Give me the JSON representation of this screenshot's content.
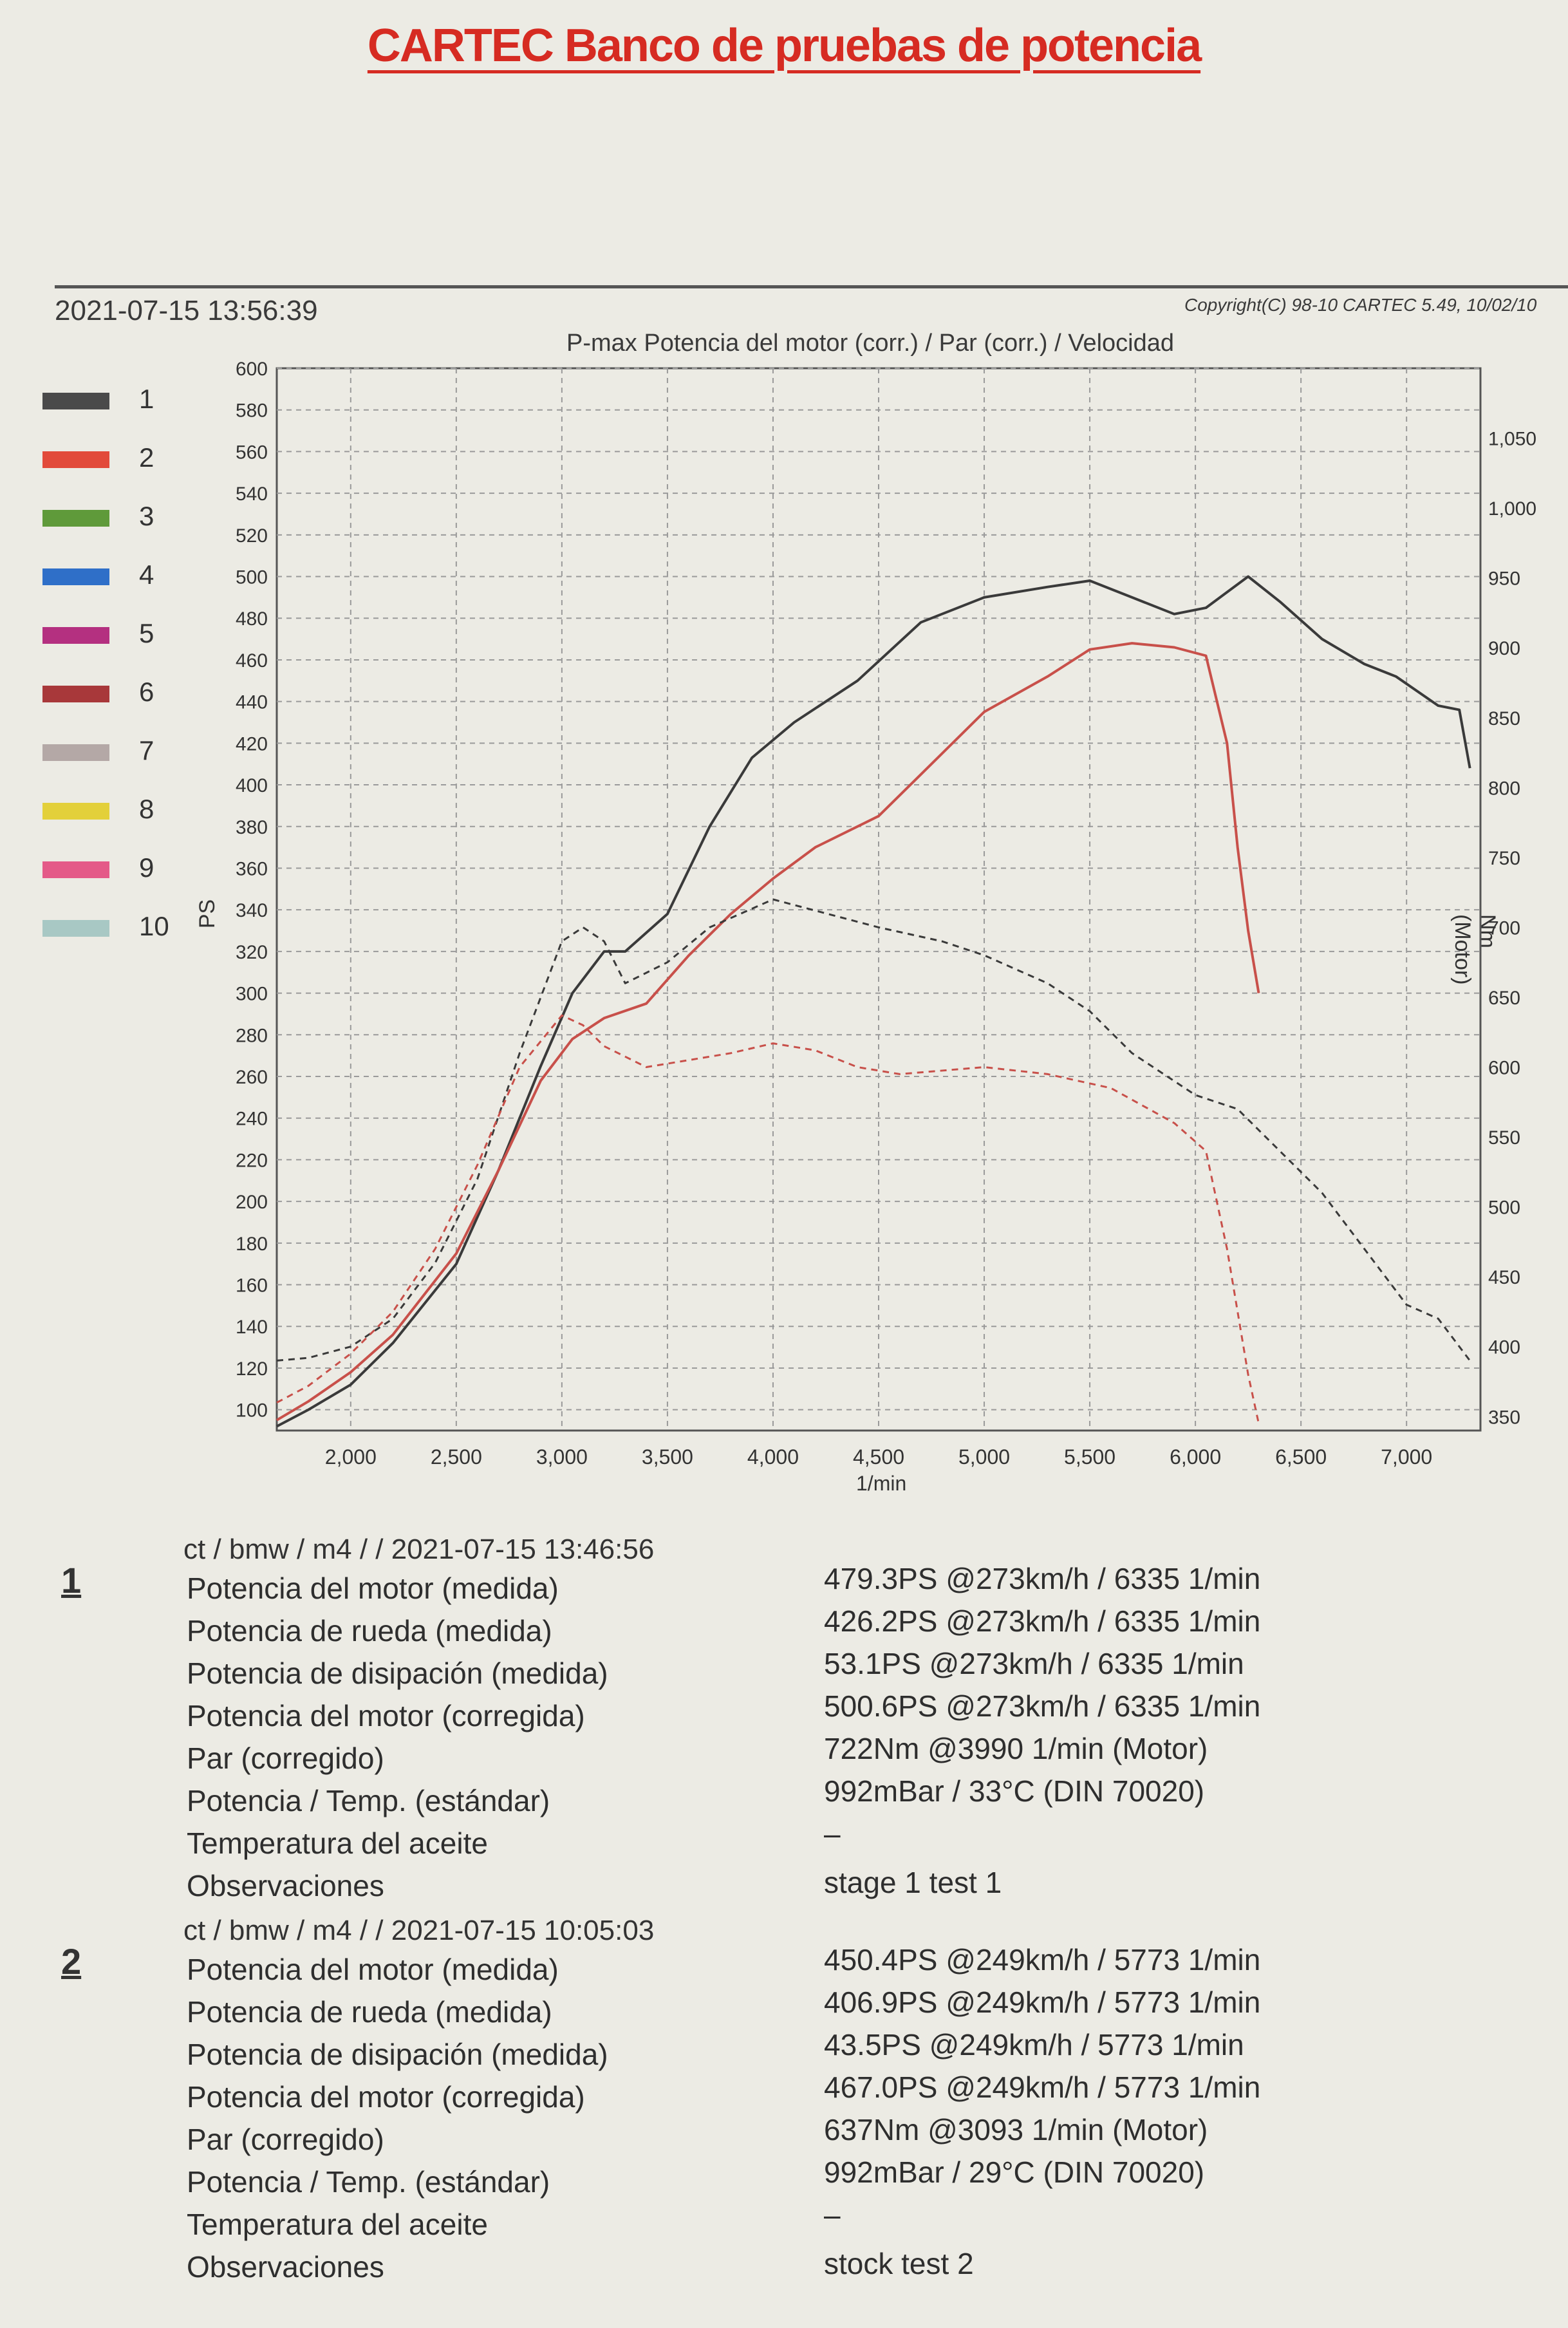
{
  "header": {
    "title": "CARTEC Banco de pruebas de potencia",
    "datetime": "2021-07-15 13:56:39",
    "copyright": "Copyright(C) 98-10 CARTEC 5.49, 10/02/10"
  },
  "legend": [
    {
      "num": "1",
      "color": "#4a4a4a"
    },
    {
      "num": "2",
      "color": "#e24a3a"
    },
    {
      "num": "3",
      "color": "#5f9a3a"
    },
    {
      "num": "4",
      "color": "#2f6fc8"
    },
    {
      "num": "5",
      "color": "#b43080"
    },
    {
      "num": "6",
      "color": "#a8383a"
    },
    {
      "num": "7",
      "color": "#b4a8a6"
    },
    {
      "num": "8",
      "color": "#e3d03a"
    },
    {
      "num": "9",
      "color": "#e45a88"
    },
    {
      "num": "10",
      "color": "#a8c8c4"
    }
  ],
  "chart_data": {
    "type": "line",
    "title": "P-max Potencia del motor (corr.) / Par (corr.) / Velocidad",
    "xlabel": "1/min",
    "ylabel_left": "PS",
    "ylabel_right": "Nm (Motor)",
    "xlim": [
      1650,
      7350
    ],
    "ylim_left": [
      90,
      600
    ],
    "ylim_right": [
      340,
      1100
    ],
    "x_ticks": [
      2000,
      2500,
      3000,
      3500,
      4000,
      4500,
      5000,
      5500,
      6000,
      6500,
      7000
    ],
    "x_tick_labels": [
      "2,000",
      "2,500",
      "3,000",
      "3,500",
      "4,000",
      "4,500",
      "5,000",
      "5,500",
      "6,000",
      "6,500",
      "7,000"
    ],
    "y_left_ticks": [
      100,
      120,
      140,
      160,
      180,
      200,
      220,
      240,
      260,
      280,
      300,
      320,
      340,
      360,
      380,
      400,
      420,
      440,
      460,
      480,
      500,
      520,
      540,
      560,
      580,
      600
    ],
    "y_right_ticks": [
      350,
      400,
      450,
      500,
      550,
      600,
      650,
      700,
      750,
      800,
      850,
      900,
      950,
      1000,
      1050
    ],
    "y_right_tick_labels": [
      "350",
      "400",
      "450",
      "500",
      "550",
      "600",
      "650",
      "700",
      "750",
      "800",
      "850",
      "900",
      "950",
      "1,000",
      "1,050"
    ],
    "grid": true,
    "series": [
      {
        "name": "1",
        "axis": "left",
        "style": "solid",
        "color": "#3a3a3a",
        "x": [
          1650,
          1800,
          2000,
          2200,
          2500,
          2700,
          2900,
          3050,
          3200,
          3300,
          3500,
          3700,
          3900,
          4100,
          4400,
          4700,
          5000,
          5300,
          5500,
          5700,
          5900,
          6050,
          6250,
          6400,
          6600,
          6800,
          6950,
          7150,
          7250,
          7300
        ],
        "y": [
          92,
          100,
          112,
          132,
          170,
          215,
          265,
          300,
          320,
          320,
          338,
          380,
          413,
          430,
          450,
          478,
          490,
          495,
          498,
          490,
          482,
          485,
          500,
          488,
          470,
          458,
          452,
          438,
          436,
          408
        ]
      },
      {
        "name": "2",
        "axis": "left",
        "style": "solid",
        "color": "#c8504a",
        "x": [
          1650,
          1800,
          2000,
          2200,
          2500,
          2700,
          2900,
          3050,
          3200,
          3400,
          3600,
          3800,
          4000,
          4200,
          4500,
          4700,
          5000,
          5300,
          5500,
          5700,
          5900,
          6050,
          6150,
          6200,
          6250,
          6300
        ],
        "y": [
          95,
          104,
          118,
          136,
          175,
          215,
          258,
          278,
          288,
          295,
          318,
          338,
          355,
          370,
          385,
          405,
          435,
          452,
          465,
          468,
          466,
          462,
          420,
          370,
          330,
          300
        ]
      },
      {
        "name": "1",
        "axis": "right",
        "style": "dashed",
        "color": "#3a3a3a",
        "x": [
          1650,
          1800,
          2000,
          2200,
          2400,
          2600,
          2800,
          3000,
          3100,
          3200,
          3300,
          3500,
          3700,
          4000,
          4200,
          4500,
          4800,
          5000,
          5300,
          5500,
          5700,
          6000,
          6200,
          6400,
          6600,
          6800,
          7000,
          7150,
          7300
        ],
        "y": [
          390,
          392,
          400,
          420,
          460,
          520,
          610,
          690,
          700,
          690,
          660,
          675,
          700,
          720,
          712,
          700,
          690,
          680,
          660,
          640,
          610,
          580,
          570,
          540,
          510,
          470,
          430,
          420,
          390
        ]
      },
      {
        "name": "2",
        "axis": "right",
        "style": "dashed",
        "color": "#c8504a",
        "x": [
          1650,
          1800,
          2000,
          2200,
          2400,
          2600,
          2800,
          3000,
          3100,
          3200,
          3400,
          3600,
          3800,
          4000,
          4200,
          4400,
          4600,
          5000,
          5300,
          5600,
          5900,
          6050,
          6150,
          6250,
          6300
        ],
        "y": [
          360,
          372,
          395,
          425,
          470,
          530,
          600,
          637,
          630,
          615,
          600,
          605,
          610,
          617,
          612,
          600,
          595,
          600,
          595,
          585,
          560,
          540,
          470,
          380,
          345
        ]
      }
    ]
  },
  "runs": [
    {
      "num": "1",
      "header": "ct / bmw / m4 /  / 2021-07-15 13:46:56",
      "rows": [
        {
          "label": "Potencia del motor (medida)",
          "value": "479.3PS @273km/h / 6335 1/min"
        },
        {
          "label": "Potencia de rueda (medida)",
          "value": "426.2PS @273km/h / 6335 1/min"
        },
        {
          "label": "Potencia de disipación (medida)",
          "value": "53.1PS @273km/h / 6335 1/min"
        },
        {
          "label": "Potencia del motor (corregida)",
          "value": "500.6PS @273km/h / 6335 1/min"
        },
        {
          "label": "Par (corregido)",
          "value": "722Nm @3990 1/min (Motor)"
        },
        {
          "label": "Potencia / Temp. (estándar)",
          "value": "992mBar / 33°C   (DIN 70020)"
        },
        {
          "label": "Temperatura del aceite",
          "value": "–"
        },
        {
          "label": "Observaciones",
          "value": "stage 1 test 1"
        }
      ]
    },
    {
      "num": "2",
      "header": "ct / bmw / m4 /  / 2021-07-15 10:05:03",
      "rows": [
        {
          "label": "Potencia del motor (medida)",
          "value": "450.4PS @249km/h / 5773 1/min"
        },
        {
          "label": "Potencia de rueda (medida)",
          "value": "406.9PS @249km/h / 5773 1/min"
        },
        {
          "label": "Potencia de disipación (medida)",
          "value": "43.5PS @249km/h / 5773 1/min"
        },
        {
          "label": "Potencia del motor (corregida)",
          "value": "467.0PS @249km/h / 5773 1/min"
        },
        {
          "label": "Par (corregido)",
          "value": "637Nm @3093 1/min (Motor)"
        },
        {
          "label": "Potencia / Temp. (estándar)",
          "value": "992mBar / 29°C   (DIN 70020)"
        },
        {
          "label": "Temperatura del aceite",
          "value": "–"
        },
        {
          "label": "Observaciones",
          "value": "stock test 2"
        }
      ]
    }
  ]
}
